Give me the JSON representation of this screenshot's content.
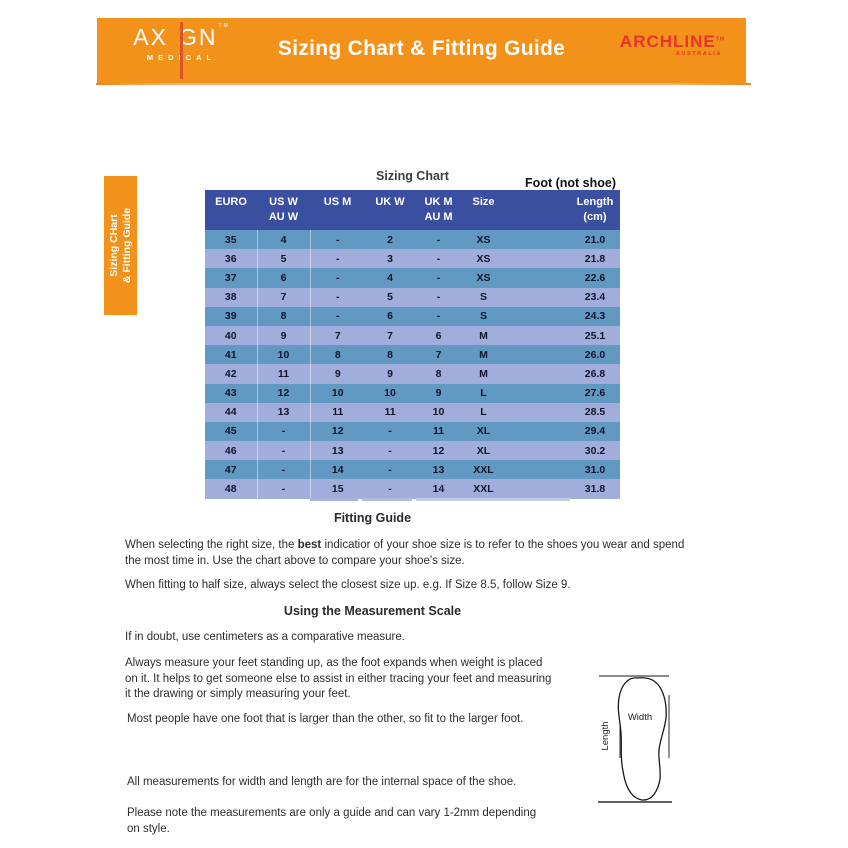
{
  "colors": {
    "banner_orange": "#F3921B",
    "logo_bar_red": "#DB5429",
    "archline_red": "#E8332A",
    "table_header_blue": "#3B4FA1",
    "row_steel_blue": "#6299C2",
    "row_periwinkle": "#A1AEDC"
  },
  "banner": {
    "axign": {
      "part1": "AX",
      "part2": "GN",
      "tm": "TM",
      "sub": "MEDICAL"
    },
    "title": "Sizing Chart & Fitting Guide",
    "archline": {
      "name": "ARCHLINE",
      "tm": "TM",
      "sub": "AUSTRALIA"
    }
  },
  "side_tab": {
    "line1": "Sizing CHart",
    "line2": "& Fitting Guide"
  },
  "table_section": {
    "title": "Sizing Chart",
    "foot_label": "Foot (not shoe)",
    "header": [
      {
        "line1": "EURO",
        "line2": ""
      },
      {
        "line1": "US W",
        "line2": "AU W"
      },
      {
        "line1": "US M",
        "line2": ""
      },
      {
        "line1": "UK W",
        "line2": ""
      },
      {
        "line1": "UK M",
        "line2": "AU M"
      },
      {
        "line1": "Size",
        "line2": ""
      },
      {
        "line1": "Length",
        "line2": "(cm)"
      }
    ],
    "rows": [
      [
        "35",
        "4",
        "-",
        "2",
        "-",
        "XS",
        "21.0"
      ],
      [
        "36",
        "5",
        "-",
        "3",
        "-",
        "XS",
        "21.8"
      ],
      [
        "37",
        "6",
        "-",
        "4",
        "-",
        "XS",
        "22.6"
      ],
      [
        "38",
        "7",
        "-",
        "5",
        "-",
        "S",
        "23.4"
      ],
      [
        "39",
        "8",
        "-",
        "6",
        "-",
        "S",
        "24.3"
      ],
      [
        "40",
        "9",
        "7",
        "7",
        "6",
        "M",
        "25.1"
      ],
      [
        "41",
        "10",
        "8",
        "8",
        "7",
        "M",
        "26.0"
      ],
      [
        "42",
        "11",
        "9",
        "9",
        "8",
        "M",
        "26.8"
      ],
      [
        "43",
        "12",
        "10",
        "10",
        "9",
        "L",
        "27.6"
      ],
      [
        "44",
        "13",
        "11",
        "11",
        "10",
        "L",
        "28.5"
      ],
      [
        "45",
        "-",
        "12",
        "-",
        "11",
        "XL",
        "29.4"
      ],
      [
        "46",
        "-",
        "13",
        "-",
        "12",
        "XL",
        "30.2"
      ],
      [
        "47",
        "-",
        "14",
        "-",
        "13",
        "XXL",
        "31.0"
      ],
      [
        "48",
        "-",
        "15",
        "-",
        "14",
        "XXL",
        "31.8"
      ]
    ]
  },
  "fitting_guide": {
    "heading": "Fitting Guide",
    "para1_line1_pre": "When selecting the right size, the ",
    "para1_line1_bold": "best",
    "para1_line1_post": " indicatior of your shoe size is to refer to the shoes you wear and spend",
    "para1_line2": "the most time in. Use the chart above to compare your shoe's size.",
    "para2": "When fitting to half size, always select the closest size up. e.g. If Size 8.5, follow Size 9."
  },
  "measurement_scale": {
    "heading": "Using the Measurement Scale",
    "para1": "If in doubt, use centimeters as a comparative measure.",
    "para2_lines": [
      "Always measure your feet standing up, as the foot expands when weight is placed",
      "on it. It helps to get someone else to assist in either tracing your feet and measuring",
      "it the drawing or simply measuring your feet."
    ],
    "para3": "Most people have one foot that is larger than the other, so fit to the larger foot.",
    "para4": "All measurements for width and length are for the internal space of the shoe.",
    "para5_lines": [
      "Please note the measurements are only a guide and can vary 1-2mm depending",
      "on style."
    ]
  },
  "diagram": {
    "width_label": "Width",
    "length_label": "Length"
  }
}
